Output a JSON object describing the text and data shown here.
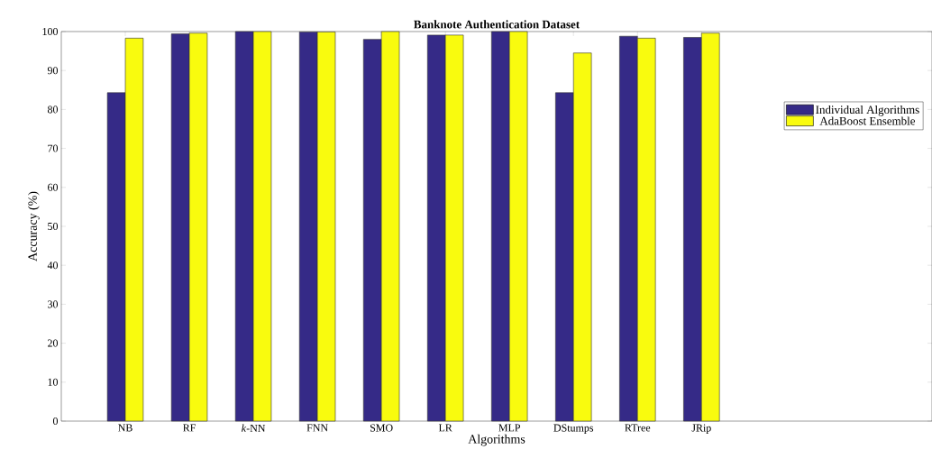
{
  "chart_data": {
    "type": "bar",
    "title": "Banknote Authentication Dataset",
    "xlabel": "Algorithms",
    "ylabel": "Accuracy (%)",
    "categories": [
      "NB",
      "RF",
      "*k*-NN",
      "FNN",
      "SMO",
      "LR",
      "MLP",
      "DStumps",
      "RTree",
      "JRip"
    ],
    "series": [
      {
        "name": "Individual Algorithms",
        "color": "#352a87",
        "values": [
          84.3,
          99.4,
          100,
          99.9,
          98.0,
          99.1,
          100,
          84.3,
          98.8,
          98.5
        ]
      },
      {
        "name": "AdaBoost Ensemble",
        "color": "#f9fb0e",
        "values": [
          98.3,
          99.6,
          100,
          99.9,
          100,
          99.1,
          100,
          94.5,
          98.3,
          99.6
        ]
      }
    ],
    "ylim": [
      0,
      100
    ],
    "yticks": [
      0,
      10,
      20,
      30,
      40,
      50,
      60,
      70,
      80,
      90,
      100
    ],
    "grid": false,
    "legend": "top right"
  }
}
